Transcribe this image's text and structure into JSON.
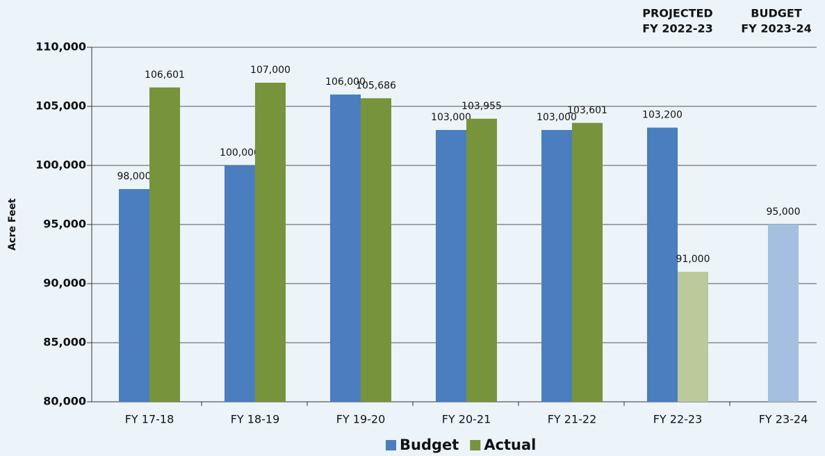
{
  "chart_data": {
    "type": "bar",
    "y_label": "Acre Feet",
    "annotations": [
      {
        "lines": [
          "PROJECTED",
          "FY 2022-23"
        ],
        "category": 5
      },
      {
        "lines": [
          "BUDGET",
          "FY 2023-24"
        ],
        "category": 6
      }
    ],
    "categories": [
      "FY 17-18",
      "FY 18-19",
      "FY 19-20",
      "FY 20-21",
      "FY 21-22",
      "FY 22-23",
      "FY 23-24"
    ],
    "series": [
      {
        "name": "Budget",
        "color": "#4a7ebf",
        "colors": [
          "#4a7ebf",
          "#4a7ebf",
          "#4a7ebf",
          "#4a7ebf",
          "#4a7ebf",
          "#4a7ebf",
          "#a4bfe0"
        ],
        "values": [
          98000,
          100000,
          106000,
          103000,
          103000,
          103200,
          95000
        ],
        "value_labels": [
          "98,000",
          "100,000",
          "106,000",
          "103,000",
          "103,000",
          "103,200",
          "95,000"
        ]
      },
      {
        "name": "Actual",
        "color": "#77933c",
        "colors": [
          "#77933c",
          "#77933c",
          "#77933c",
          "#77933c",
          "#77933c",
          "#bcc99b",
          null
        ],
        "values": [
          106601,
          107000,
          105686,
          103955,
          103601,
          91000,
          null
        ],
        "value_labels": [
          "106,601",
          "107,000",
          "105,686",
          "103,955",
          "103,601",
          "91,000",
          null
        ]
      }
    ],
    "ylim": [
      80000,
      110000
    ],
    "yticks": [
      {
        "value": 80000,
        "label": "80,000"
      },
      {
        "value": 85000,
        "label": "85,000"
      },
      {
        "value": 90000,
        "label": "90,000"
      },
      {
        "value": 95000,
        "label": "95,000"
      },
      {
        "value": 100000,
        "label": "100,000"
      },
      {
        "value": 105000,
        "label": "105,000"
      },
      {
        "value": 110000,
        "label": "110,000"
      }
    ],
    "grid": true,
    "legend": "bottom"
  }
}
